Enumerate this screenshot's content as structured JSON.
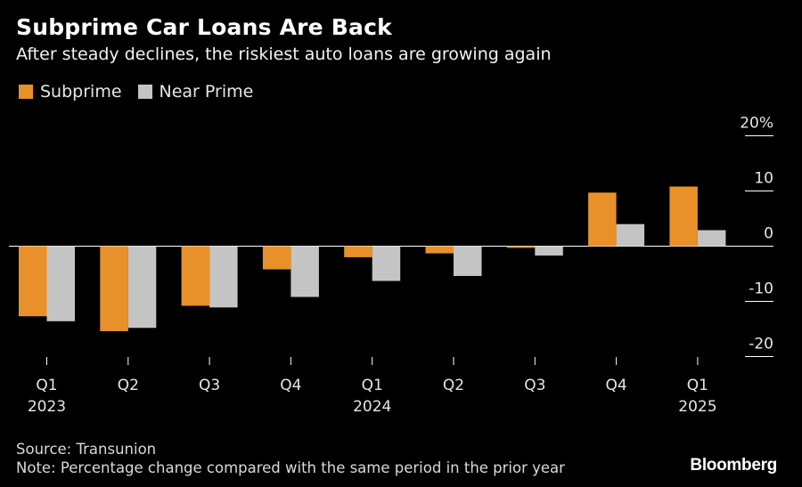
{
  "title": "Subprime Car Loans Are Back",
  "subtitle": "After steady declines, the riskiest auto loans are growing again",
  "source": "Source: Transunion",
  "note": "Note: Percentage change compared with the same period in the prior year",
  "brand": "Bloomberg",
  "colors": {
    "subprime": "#e8912b",
    "near_prime": "#c4c4c4",
    "background": "#000000"
  },
  "chart_data": {
    "type": "bar",
    "categories": [
      "Q1",
      "Q2",
      "Q3",
      "Q4",
      "Q1",
      "Q2",
      "Q3",
      "Q4",
      "Q1"
    ],
    "year_labels": [
      "2023",
      "",
      "",
      "",
      "2024",
      "",
      "",
      "",
      "2025"
    ],
    "series": [
      {
        "name": "Subprime",
        "values": [
          -12.7,
          -15.4,
          -10.8,
          -4.2,
          -2.0,
          -1.3,
          -0.3,
          9.7,
          10.8
        ]
      },
      {
        "name": "Near Prime",
        "values": [
          -13.6,
          -14.8,
          -11.1,
          -9.2,
          -6.3,
          -5.4,
          -1.7,
          4.0,
          2.9
        ]
      }
    ],
    "ylim": [
      -20,
      20
    ],
    "yticks": [
      20,
      10,
      0,
      -10,
      -20
    ],
    "ytick_labels": [
      "20%",
      "10",
      "0",
      "-10",
      "-20"
    ],
    "ylabel": "",
    "xlabel": "",
    "legend_position": "top-left",
    "grid": false
  }
}
